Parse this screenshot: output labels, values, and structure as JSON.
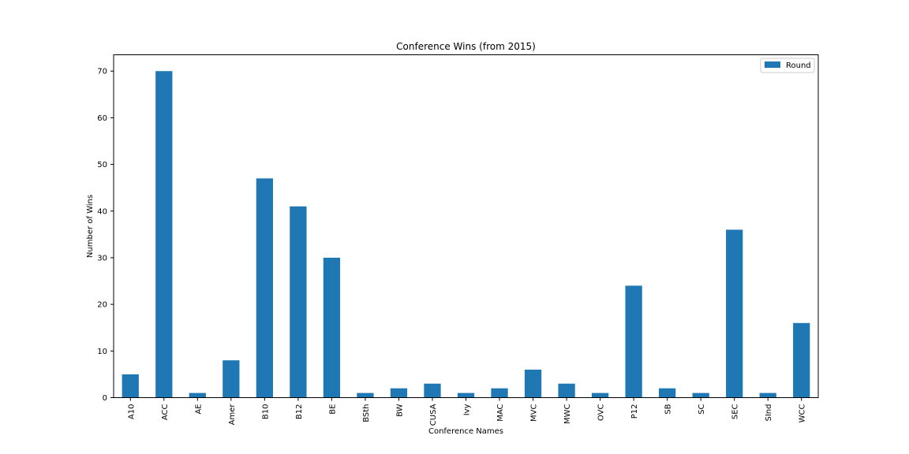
{
  "chart_data": {
    "type": "bar",
    "title": "Conference Wins (from 2015)",
    "xlabel": "Conference Names",
    "ylabel": "Number of Wins",
    "ylim": [
      0,
      73.5
    ],
    "yticks": [
      0,
      10,
      20,
      30,
      40,
      50,
      60,
      70
    ],
    "grid": false,
    "legend_position": "top-right",
    "categories": [
      "A10",
      "ACC",
      "AE",
      "Amer",
      "B10",
      "B12",
      "BE",
      "BSth",
      "BW",
      "CUSA",
      "Ivy",
      "MAC",
      "MVC",
      "MWC",
      "OVC",
      "P12",
      "SB",
      "SC",
      "SEC",
      "SInd",
      "WCC"
    ],
    "series": [
      {
        "name": "Round",
        "color": "#1f77b4",
        "values": [
          5,
          70,
          1,
          8,
          47,
          41,
          30,
          1,
          2,
          3,
          1,
          2,
          6,
          3,
          1,
          24,
          2,
          1,
          36,
          1,
          16
        ]
      }
    ]
  }
}
